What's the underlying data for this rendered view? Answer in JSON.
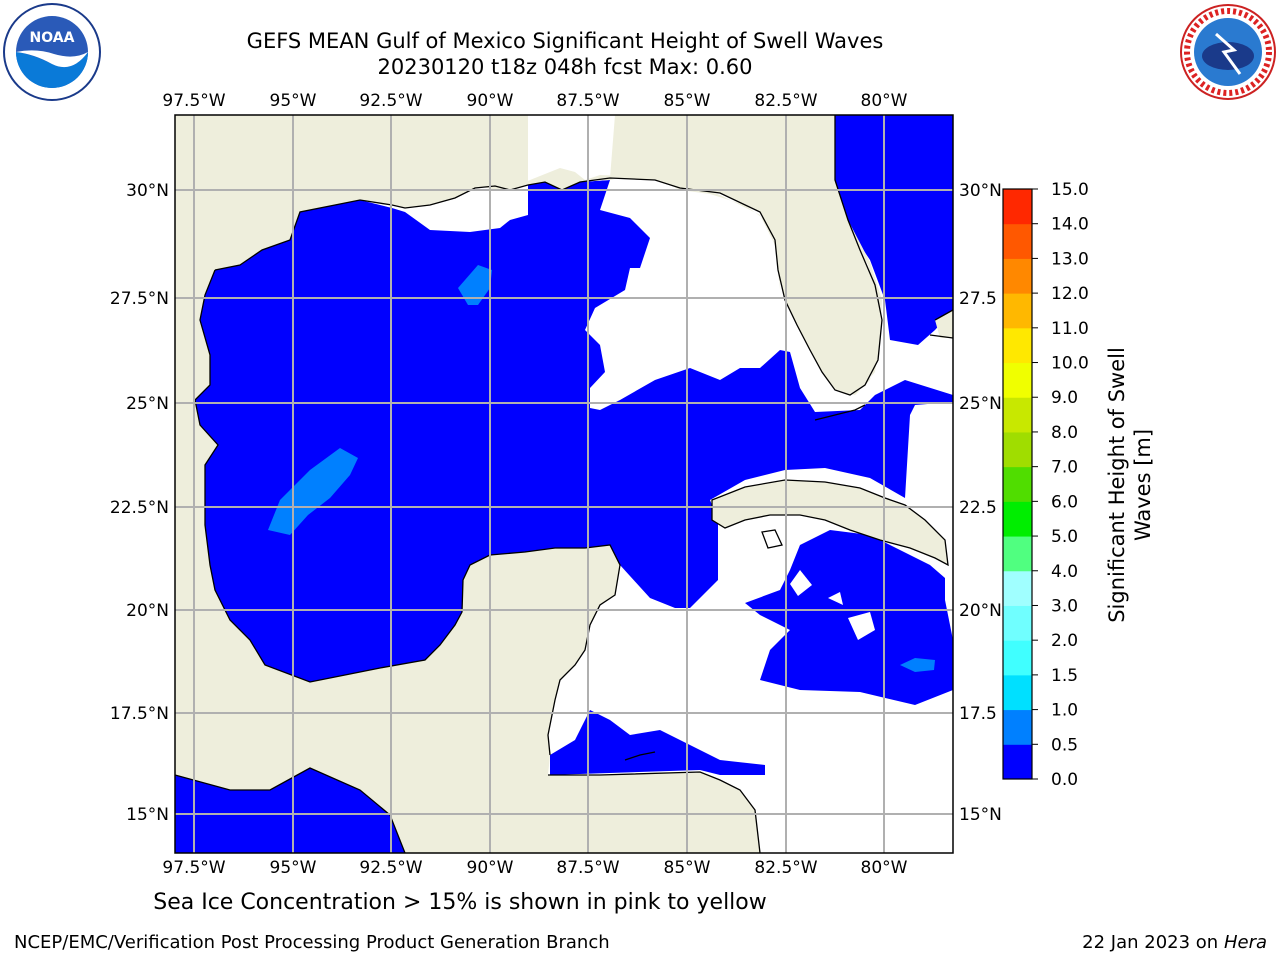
{
  "title_line1": "GEFS MEAN Gulf of Mexico Significant Height of Swell Waves",
  "title_line2": "20230120 t18z 048h fcst   Max: 0.60",
  "lon_labels": [
    "97.5°W",
    "95°W",
    "92.5°W",
    "90°W",
    "87.5°W",
    "85°W",
    "82.5°W",
    "80°W"
  ],
  "lat_labels_left": [
    "30°N",
    "27.5°N",
    "25°N",
    "22.5°N",
    "20°N",
    "17.5°N",
    "15°N"
  ],
  "lat_labels_right": [
    "30°N",
    "27.5",
    "25°N",
    "22.5",
    "20°N",
    "17.5",
    "15°N"
  ],
  "colorbar": {
    "label": "Significant Height of Swell Waves [m]",
    "label_line1": "Significant Height of Swell",
    "label_line2": "Waves [m]",
    "ticks": [
      "0.0",
      "0.5",
      "1.0",
      "1.5",
      "2.0",
      "3.0",
      "4.0",
      "5.0",
      "6.0",
      "7.0",
      "8.0",
      "9.0",
      "10.0",
      "11.0",
      "12.0",
      "13.0",
      "14.0",
      "15.0"
    ],
    "colors": [
      "#0000ff",
      "#0080ff",
      "#00e0ff",
      "#40ffff",
      "#70ffff",
      "#a0ffff",
      "#50ff80",
      "#00ee00",
      "#50dd00",
      "#a0dd00",
      "#c8e800",
      "#f0ff00",
      "#ffe800",
      "#ffb800",
      "#ff8800",
      "#ff5800",
      "#ff2800"
    ]
  },
  "note": "Sea Ice Concentration > 15% is shown in pink to yellow",
  "footer_left": "NCEP/EMC/Verification Post Processing Product Generation Branch",
  "footer_date": "22 Jan 2023 on ",
  "footer_host": "Hera",
  "colors": {
    "land": "#eeeedc",
    "ocean_low": "#0000ff",
    "ocean_mid": "#0080ff",
    "missing": "#ffffff",
    "grid": "#b0b0b0"
  }
}
